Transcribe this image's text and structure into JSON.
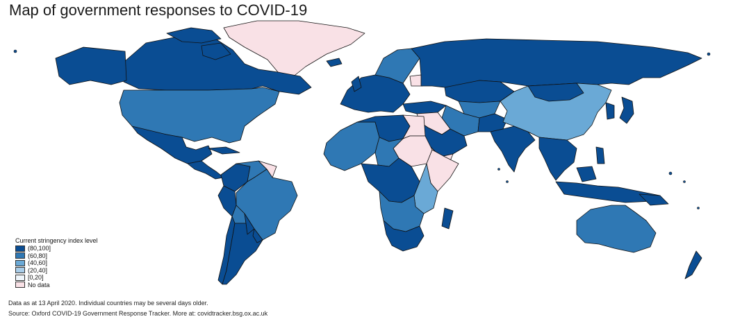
{
  "title": "Map of government responses to COVID-19",
  "legend": {
    "title": "Current stringency index level",
    "items": [
      {
        "label": "(80,100]",
        "color": "#0a4d93"
      },
      {
        "label": "(60,80]",
        "color": "#2f78b4"
      },
      {
        "label": "(40,60]",
        "color": "#6aa9d6"
      },
      {
        "label": "(20,40]",
        "color": "#a9cde9"
      },
      {
        "label": "[0,20]",
        "color": "#eef5fb"
      },
      {
        "label": "No data",
        "color": "#f9e1e6"
      }
    ]
  },
  "footnotes": {
    "date_note": "Data as at 13 April 2020. Individual countries may be several days older.",
    "source": "Source: Oxford COVID-19 Government Response Tracker. More at: covidtracker.bsg.ox.ac.uk"
  },
  "colors": {
    "band_80_100": "#0a4d93",
    "band_60_80": "#2f78b4",
    "band_40_60": "#6aa9d6",
    "band_20_40": "#a9cde9",
    "band_0_20": "#eef5fb",
    "no_data": "#f9e1e6",
    "border": "#111111"
  }
}
